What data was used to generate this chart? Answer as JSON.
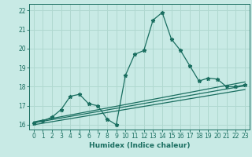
{
  "title": "",
  "xlabel": "Humidex (Indice chaleur)",
  "bg_color": "#c8eae5",
  "grid_color": "#b0d8d0",
  "line_color": "#1a6e60",
  "xlim": [
    -0.5,
    23.5
  ],
  "ylim": [
    15.75,
    22.35
  ],
  "yticks": [
    16,
    17,
    18,
    19,
    20,
    21,
    22
  ],
  "xticks": [
    0,
    1,
    2,
    3,
    4,
    5,
    6,
    7,
    8,
    9,
    10,
    11,
    12,
    13,
    14,
    15,
    16,
    17,
    18,
    19,
    20,
    21,
    22,
    23
  ],
  "main_x": [
    0,
    1,
    2,
    3,
    4,
    5,
    6,
    7,
    8,
    9,
    10,
    11,
    12,
    13,
    14,
    15,
    16,
    17,
    18,
    19,
    20,
    21,
    22,
    23
  ],
  "main_y": [
    16.1,
    16.2,
    16.4,
    16.8,
    17.5,
    17.6,
    17.1,
    17.0,
    16.3,
    16.0,
    18.6,
    19.7,
    19.9,
    21.5,
    21.9,
    20.5,
    19.9,
    19.1,
    18.3,
    18.45,
    18.4,
    18.0,
    18.0,
    18.1
  ],
  "trend_lines": [
    {
      "x": [
        0,
        23
      ],
      "y": [
        16.0,
        17.85
      ]
    },
    {
      "x": [
        0,
        23
      ],
      "y": [
        16.1,
        18.05
      ]
    },
    {
      "x": [
        0,
        23
      ],
      "y": [
        16.15,
        18.25
      ]
    }
  ],
  "xlabel_fontsize": 6.5,
  "tick_fontsize": 5.5
}
